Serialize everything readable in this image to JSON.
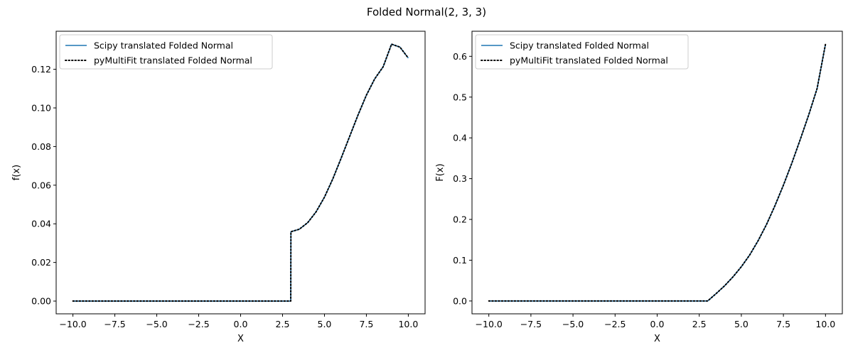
{
  "figure": {
    "suptitle": "Folded Normal(2, 3, 3)"
  },
  "chart_data": [
    {
      "type": "line",
      "xlabel": "X",
      "ylabel": "f(x)",
      "xlim": [
        -11.0,
        11.0
      ],
      "ylim": [
        -0.0066,
        0.1397
      ],
      "xticks": [
        -10.0,
        -7.5,
        -5.0,
        -2.5,
        0.0,
        2.5,
        5.0,
        7.5,
        10.0
      ],
      "xtick_labels": [
        "−10.0",
        "−7.5",
        "−5.0",
        "−2.5",
        "0.0",
        "2.5",
        "5.0",
        "7.5",
        "10.0"
      ],
      "yticks": [
        0.0,
        0.02,
        0.04,
        0.06,
        0.08,
        0.1,
        0.12
      ],
      "ytick_labels": [
        "0.00",
        "0.02",
        "0.04",
        "0.06",
        "0.08",
        "0.10",
        "0.12"
      ],
      "grid": false,
      "legend_position": "upper-left",
      "series": [
        {
          "name": "Scipy translated Folded Normal",
          "color": "#1f77b4",
          "style": "solid",
          "x": [
            -10,
            2.99,
            3.0,
            3.5,
            4.0,
            4.5,
            5.0,
            5.5,
            6.0,
            6.5,
            7.0,
            7.5,
            8.0,
            8.5,
            9.0,
            9.5,
            10.0
          ],
          "y": [
            0.0,
            0.0,
            0.0359,
            0.0372,
            0.0406,
            0.0462,
            0.0538,
            0.0633,
            0.0741,
            0.0852,
            0.0963,
            0.1066,
            0.1151,
            0.1213,
            0.133,
            0.1315,
            0.1258
          ]
        },
        {
          "name": "pyMultiFit translated Folded Normal",
          "color": "#000000",
          "style": "dotted",
          "x": [
            -10,
            2.99,
            3.0,
            3.5,
            4.0,
            4.5,
            5.0,
            5.5,
            6.0,
            6.5,
            7.0,
            7.5,
            8.0,
            8.5,
            9.0,
            9.5,
            10.0
          ],
          "y": [
            0.0,
            0.0,
            0.0359,
            0.0372,
            0.0406,
            0.0462,
            0.0538,
            0.0633,
            0.0741,
            0.0852,
            0.0963,
            0.1066,
            0.1151,
            0.1213,
            0.133,
            0.1315,
            0.1258
          ]
        }
      ]
    },
    {
      "type": "line",
      "xlabel": "X",
      "ylabel": "F(x)",
      "xlim": [
        -11.0,
        11.0
      ],
      "ylim": [
        -0.0315,
        0.6615
      ],
      "xticks": [
        -10.0,
        -7.5,
        -5.0,
        -2.5,
        0.0,
        2.5,
        5.0,
        7.5,
        10.0
      ],
      "xtick_labels": [
        "−10.0",
        "−7.5",
        "−5.0",
        "−2.5",
        "0.0",
        "2.5",
        "5.0",
        "7.5",
        "10.0"
      ],
      "yticks": [
        0.0,
        0.1,
        0.2,
        0.3,
        0.4,
        0.5,
        0.6
      ],
      "ytick_labels": [
        "0.0",
        "0.1",
        "0.2",
        "0.3",
        "0.4",
        "0.5",
        "0.6"
      ],
      "grid": false,
      "legend_position": "upper-left",
      "series": [
        {
          "name": "Scipy translated Folded Normal",
          "color": "#1f77b4",
          "style": "solid",
          "x": [
            -10,
            3.0,
            3.5,
            4.0,
            4.5,
            5.0,
            5.5,
            6.0,
            6.5,
            7.0,
            7.5,
            8.0,
            8.5,
            9.0,
            9.5,
            10.0
          ],
          "y": [
            0.0,
            0.0,
            0.018,
            0.037,
            0.059,
            0.084,
            0.113,
            0.148,
            0.188,
            0.234,
            0.284,
            0.338,
            0.396,
            0.456,
            0.521,
            0.63
          ]
        },
        {
          "name": "pyMultiFit translated Folded Normal",
          "color": "#000000",
          "style": "dotted",
          "x": [
            -10,
            3.0,
            3.5,
            4.0,
            4.5,
            5.0,
            5.5,
            6.0,
            6.5,
            7.0,
            7.5,
            8.0,
            8.5,
            9.0,
            9.5,
            10.0
          ],
          "y": [
            0.0,
            0.0,
            0.018,
            0.037,
            0.059,
            0.084,
            0.113,
            0.148,
            0.188,
            0.234,
            0.284,
            0.338,
            0.396,
            0.456,
            0.521,
            0.63
          ]
        }
      ]
    }
  ]
}
